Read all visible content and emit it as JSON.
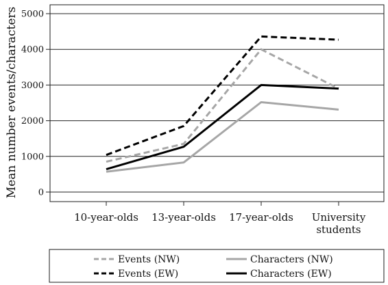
{
  "chart_data": {
    "type": "line",
    "ylabel": "Mean number events/characters",
    "xlabel": "",
    "ylim": [
      0,
      5000
    ],
    "yticks": [
      0,
      1000,
      2000,
      3000,
      4000,
      5000
    ],
    "grid": "horizontal",
    "legend_position": "bottom",
    "categories": [
      [
        "10-year-olds"
      ],
      [
        "13-year-olds"
      ],
      [
        "17-year-olds"
      ],
      [
        "University",
        "students"
      ]
    ],
    "series": [
      {
        "name": "Events (NW)",
        "values": [
          850,
          1350,
          4000,
          2900
        ],
        "color": "#a6a6a6",
        "dash": "dashed"
      },
      {
        "name": "Characters (NW)",
        "values": [
          570,
          830,
          2520,
          2310
        ],
        "color": "#a6a6a6",
        "dash": "solid"
      },
      {
        "name": "Events (EW)",
        "values": [
          1040,
          1850,
          4360,
          4270
        ],
        "color": "#000000",
        "dash": "dashed"
      },
      {
        "name": "Characters (EW)",
        "values": [
          640,
          1270,
          3000,
          2900
        ],
        "color": "#000000",
        "dash": "solid"
      }
    ]
  }
}
